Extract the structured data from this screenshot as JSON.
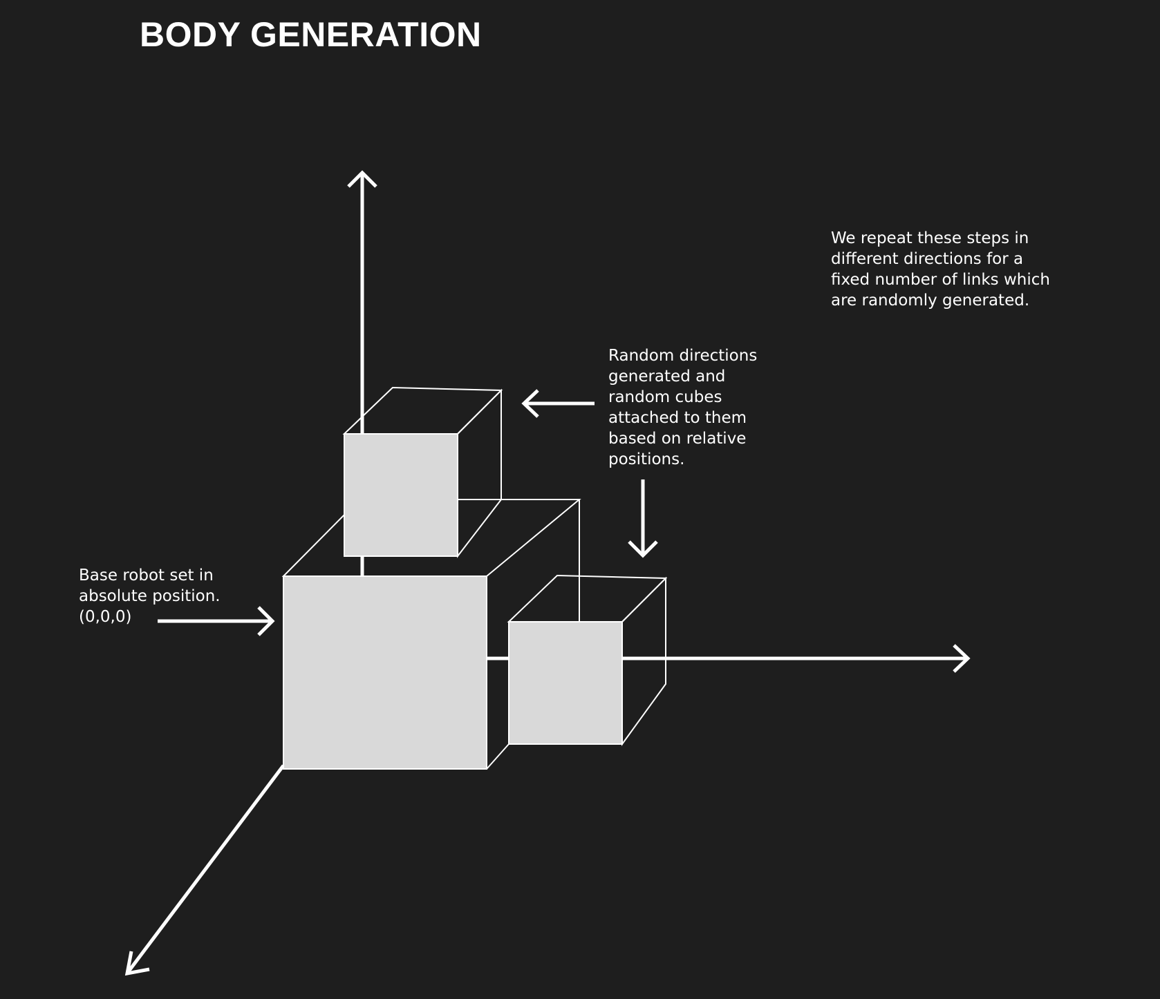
{
  "title": "BODY GENERATION",
  "colors": {
    "background": "#1e1e1e",
    "foreground": "#ffffff",
    "cube_face": "#d9d9d9"
  },
  "notes": {
    "base_robot": {
      "lines": [
        "Base robot set in",
        "absolute position.",
        "(0,0,0)"
      ]
    },
    "random_directions": {
      "lines": [
        "Random directions",
        "generated and",
        "random cubes",
        "attached to them",
        "based on relative",
        "positions."
      ]
    },
    "repeat": {
      "lines": [
        "We repeat these steps in",
        "different directions for a",
        "fixed number of links which",
        "are randomly generated."
      ]
    }
  }
}
